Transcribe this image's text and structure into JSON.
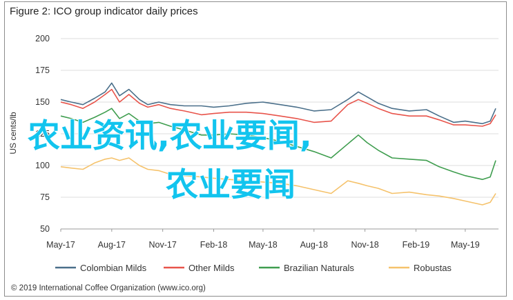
{
  "title": "Figure 2: ICO group indicator daily prices",
  "credit": "© 2019 International Coffee Organization (www.ico.org)",
  "watermark": {
    "line1": "农业资讯,农业要闻,",
    "line2": "农业要闻",
    "color": "#12c4ee"
  },
  "chart_data": {
    "type": "line",
    "title": "Figure 2: ICO group indicator daily prices",
    "xlabel": "",
    "ylabel": "US cents/lb",
    "ylim": [
      50,
      200
    ],
    "yticks": [
      50,
      75,
      100,
      125,
      150,
      175,
      200
    ],
    "xlim": [
      "2017-05-01",
      "2019-06-30"
    ],
    "xtick_labels": [
      "May-17",
      "Aug-17",
      "Nov-17",
      "Feb-18",
      "May-18",
      "Aug-18",
      "Nov-18",
      "Feb-19",
      "May-19"
    ],
    "grid": true,
    "legend_position": "bottom",
    "series": [
      {
        "name": "Colombian Milds",
        "color": "#4a6f8a",
        "points": [
          [
            "2017-05-01",
            152
          ],
          [
            "2017-05-20",
            150
          ],
          [
            "2017-06-10",
            148
          ],
          [
            "2017-07-01",
            153
          ],
          [
            "2017-07-20",
            158
          ],
          [
            "2017-08-01",
            165
          ],
          [
            "2017-08-15",
            155
          ],
          [
            "2017-09-01",
            160
          ],
          [
            "2017-09-20",
            152
          ],
          [
            "2017-10-05",
            148
          ],
          [
            "2017-10-25",
            150
          ],
          [
            "2017-11-15",
            148
          ],
          [
            "2017-12-10",
            147
          ],
          [
            "2018-01-10",
            147
          ],
          [
            "2018-02-01",
            146
          ],
          [
            "2018-03-01",
            147
          ],
          [
            "2018-04-01",
            149
          ],
          [
            "2018-05-01",
            150
          ],
          [
            "2018-06-01",
            148
          ],
          [
            "2018-07-01",
            146
          ],
          [
            "2018-08-01",
            143
          ],
          [
            "2018-09-01",
            144
          ],
          [
            "2018-10-01",
            152
          ],
          [
            "2018-10-20",
            158
          ],
          [
            "2018-11-05",
            154
          ],
          [
            "2018-11-25",
            149
          ],
          [
            "2018-12-20",
            145
          ],
          [
            "2019-01-20",
            143
          ],
          [
            "2019-02-20",
            144
          ],
          [
            "2019-03-15",
            139
          ],
          [
            "2019-04-10",
            134
          ],
          [
            "2019-05-01",
            135
          ],
          [
            "2019-06-01",
            133
          ],
          [
            "2019-06-15",
            135
          ],
          [
            "2019-06-25",
            145
          ]
        ]
      },
      {
        "name": "Other Milds",
        "color": "#e8534a",
        "points": [
          [
            "2017-05-01",
            150
          ],
          [
            "2017-05-20",
            148
          ],
          [
            "2017-06-10",
            145
          ],
          [
            "2017-07-01",
            150
          ],
          [
            "2017-07-20",
            156
          ],
          [
            "2017-08-01",
            160
          ],
          [
            "2017-08-15",
            150
          ],
          [
            "2017-09-01",
            156
          ],
          [
            "2017-09-20",
            149
          ],
          [
            "2017-10-05",
            146
          ],
          [
            "2017-10-25",
            148
          ],
          [
            "2017-11-15",
            145
          ],
          [
            "2017-12-10",
            143
          ],
          [
            "2018-01-10",
            140
          ],
          [
            "2018-02-01",
            141
          ],
          [
            "2018-03-01",
            142
          ],
          [
            "2018-04-01",
            142
          ],
          [
            "2018-05-01",
            141
          ],
          [
            "2018-06-01",
            139
          ],
          [
            "2018-07-01",
            137
          ],
          [
            "2018-08-01",
            134
          ],
          [
            "2018-09-01",
            135
          ],
          [
            "2018-10-01",
            148
          ],
          [
            "2018-10-20",
            152
          ],
          [
            "2018-11-05",
            149
          ],
          [
            "2018-11-25",
            145
          ],
          [
            "2018-12-20",
            141
          ],
          [
            "2019-01-20",
            139
          ],
          [
            "2019-02-20",
            139
          ],
          [
            "2019-03-15",
            136
          ],
          [
            "2019-04-10",
            132
          ],
          [
            "2019-05-01",
            132
          ],
          [
            "2019-06-01",
            131
          ],
          [
            "2019-06-15",
            133
          ],
          [
            "2019-06-25",
            140
          ]
        ]
      },
      {
        "name": "Brazilian Naturals",
        "color": "#3e9d4e",
        "points": [
          [
            "2017-05-01",
            139
          ],
          [
            "2017-05-20",
            137
          ],
          [
            "2017-06-10",
            134
          ],
          [
            "2017-07-01",
            138
          ],
          [
            "2017-07-20",
            142
          ],
          [
            "2017-08-01",
            145
          ],
          [
            "2017-08-15",
            137
          ],
          [
            "2017-09-01",
            141
          ],
          [
            "2017-09-20",
            135
          ],
          [
            "2017-10-05",
            133
          ],
          [
            "2017-10-25",
            134
          ],
          [
            "2017-11-15",
            131
          ],
          [
            "2017-12-10",
            128
          ],
          [
            "2018-01-10",
            124
          ],
          [
            "2018-02-01",
            124
          ],
          [
            "2018-03-01",
            125
          ],
          [
            "2018-04-01",
            124
          ],
          [
            "2018-05-01",
            122
          ],
          [
            "2018-06-01",
            119
          ],
          [
            "2018-07-01",
            115
          ],
          [
            "2018-08-01",
            111
          ],
          [
            "2018-09-01",
            106
          ],
          [
            "2018-10-01",
            117
          ],
          [
            "2018-10-20",
            124
          ],
          [
            "2018-11-05",
            118
          ],
          [
            "2018-11-25",
            112
          ],
          [
            "2018-12-20",
            106
          ],
          [
            "2019-01-20",
            105
          ],
          [
            "2019-02-20",
            104
          ],
          [
            "2019-03-15",
            99
          ],
          [
            "2019-04-10",
            95
          ],
          [
            "2019-05-01",
            92
          ],
          [
            "2019-06-01",
            89
          ],
          [
            "2019-06-15",
            91
          ],
          [
            "2019-06-25",
            104
          ]
        ]
      },
      {
        "name": "Robustas",
        "color": "#f5c26b",
        "points": [
          [
            "2017-05-01",
            99
          ],
          [
            "2017-05-20",
            98
          ],
          [
            "2017-06-10",
            97
          ],
          [
            "2017-07-01",
            102
          ],
          [
            "2017-07-20",
            105
          ],
          [
            "2017-08-01",
            106
          ],
          [
            "2017-08-15",
            104
          ],
          [
            "2017-09-01",
            106
          ],
          [
            "2017-09-20",
            100
          ],
          [
            "2017-10-05",
            97
          ],
          [
            "2017-10-25",
            96
          ],
          [
            "2017-11-15",
            93
          ],
          [
            "2017-12-10",
            92
          ],
          [
            "2018-01-10",
            91
          ],
          [
            "2018-02-01",
            90
          ],
          [
            "2018-03-01",
            89
          ],
          [
            "2018-04-01",
            88
          ],
          [
            "2018-05-01",
            87
          ],
          [
            "2018-06-01",
            86
          ],
          [
            "2018-07-01",
            84
          ],
          [
            "2018-08-01",
            81
          ],
          [
            "2018-09-01",
            78
          ],
          [
            "2018-10-01",
            88
          ],
          [
            "2018-10-20",
            86
          ],
          [
            "2018-11-05",
            84
          ],
          [
            "2018-11-25",
            82
          ],
          [
            "2018-12-20",
            78
          ],
          [
            "2019-01-20",
            79
          ],
          [
            "2019-02-20",
            77
          ],
          [
            "2019-03-15",
            76
          ],
          [
            "2019-04-10",
            74
          ],
          [
            "2019-05-01",
            72
          ],
          [
            "2019-06-01",
            69
          ],
          [
            "2019-06-15",
            71
          ],
          [
            "2019-06-25",
            78
          ]
        ]
      }
    ]
  }
}
